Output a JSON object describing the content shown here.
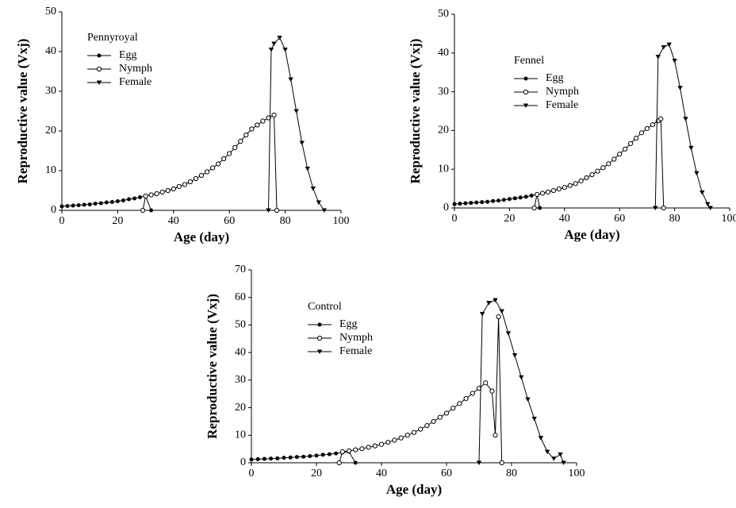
{
  "chart_data": [
    {
      "type": "line",
      "title": "Pennyroyal",
      "xlabel": "Age (day)",
      "ylabel": "Reproductive value (Vxj)",
      "xlim": [
        0,
        100
      ],
      "xticks": [
        0,
        20,
        40,
        60,
        80,
        100
      ],
      "ylim": [
        0,
        50
      ],
      "yticks": [
        0,
        10,
        20,
        30,
        40,
        50
      ],
      "series": [
        {
          "name": "Egg",
          "color": "#000000",
          "marker": "filled-circle",
          "x": [
            0,
            2,
            4,
            6,
            8,
            10,
            12,
            14,
            16,
            18,
            20,
            22,
            24,
            26,
            28,
            30,
            32
          ],
          "values": [
            1.0,
            1.1,
            1.2,
            1.3,
            1.4,
            1.5,
            1.7,
            1.8,
            2.0,
            2.1,
            2.3,
            2.5,
            2.8,
            3.0,
            3.3,
            3.6,
            0
          ]
        },
        {
          "name": "Nymph",
          "color": "#000000",
          "marker": "open-circle",
          "x": [
            29,
            30,
            32,
            34,
            36,
            38,
            40,
            42,
            44,
            46,
            48,
            50,
            52,
            54,
            56,
            58,
            60,
            62,
            64,
            66,
            68,
            70,
            72,
            74,
            76,
            77
          ],
          "values": [
            0,
            3.6,
            3.9,
            4.2,
            4.6,
            5.0,
            5.4,
            6.0,
            6.5,
            7.2,
            8.0,
            8.8,
            9.7,
            10.7,
            11.7,
            13.0,
            14.3,
            15.8,
            17.4,
            19.0,
            20.5,
            21.5,
            22.5,
            23.3,
            24.0,
            0
          ]
        },
        {
          "name": "Female",
          "color": "#000000",
          "marker": "filled-triangle-down",
          "x": [
            74,
            75,
            76,
            78,
            80,
            82,
            84,
            86,
            88,
            90,
            92,
            94
          ],
          "values": [
            0,
            40.5,
            42,
            43.5,
            40.5,
            33,
            25,
            17,
            10.5,
            5.5,
            2,
            0
          ]
        }
      ]
    },
    {
      "type": "line",
      "title": "Fennel",
      "xlabel": "Age (day)",
      "ylabel": "Reproductive value (Vxj)",
      "xlim": [
        0,
        100
      ],
      "xticks": [
        0,
        20,
        40,
        60,
        80,
        100
      ],
      "ylim": [
        0,
        50
      ],
      "yticks": [
        0,
        10,
        20,
        30,
        40,
        50
      ],
      "series": [
        {
          "name": "Egg",
          "color": "#000000",
          "marker": "filled-circle",
          "x": [
            0,
            2,
            4,
            6,
            8,
            10,
            12,
            14,
            16,
            18,
            20,
            22,
            24,
            26,
            28,
            30,
            31
          ],
          "values": [
            1.0,
            1.1,
            1.2,
            1.3,
            1.4,
            1.5,
            1.6,
            1.8,
            1.9,
            2.1,
            2.3,
            2.5,
            2.7,
            2.9,
            3.2,
            3.5,
            0
          ]
        },
        {
          "name": "Nymph",
          "color": "#000000",
          "marker": "open-circle",
          "x": [
            29,
            30,
            32,
            34,
            36,
            38,
            40,
            42,
            44,
            46,
            48,
            50,
            52,
            54,
            56,
            58,
            60,
            62,
            64,
            66,
            68,
            70,
            72,
            74,
            75,
            76
          ],
          "values": [
            0,
            3.5,
            3.8,
            4.1,
            4.5,
            4.9,
            5.3,
            5.8,
            6.3,
            7.0,
            7.8,
            8.6,
            9.5,
            10.4,
            11.4,
            12.6,
            13.9,
            15.2,
            16.6,
            18.0,
            19.4,
            20.5,
            21.5,
            22.5,
            23,
            0
          ]
        },
        {
          "name": "Female",
          "color": "#000000",
          "marker": "filled-triangle-down",
          "x": [
            73,
            74,
            76,
            78,
            80,
            82,
            84,
            86,
            88,
            90,
            92,
            93
          ],
          "values": [
            0,
            39,
            41.5,
            42.2,
            38,
            31,
            23,
            15.5,
            9,
            4,
            1,
            0
          ]
        }
      ]
    },
    {
      "type": "line",
      "title": "Control",
      "xlabel": "Age (day)",
      "ylabel": "Reproductive value (Vxj)",
      "xlim": [
        0,
        100
      ],
      "xticks": [
        0,
        20,
        40,
        60,
        80,
        100
      ],
      "ylim": [
        0,
        70
      ],
      "yticks": [
        0,
        10,
        20,
        30,
        40,
        50,
        60,
        70
      ],
      "series": [
        {
          "name": "Egg",
          "color": "#000000",
          "marker": "filled-circle",
          "x": [
            0,
            2,
            4,
            6,
            8,
            10,
            12,
            14,
            16,
            18,
            20,
            22,
            24,
            26,
            28,
            30,
            32
          ],
          "values": [
            1.2,
            1.3,
            1.4,
            1.5,
            1.6,
            1.8,
            1.9,
            2.1,
            2.2,
            2.4,
            2.6,
            2.9,
            3.1,
            3.4,
            3.7,
            4.0,
            0
          ]
        },
        {
          "name": "Nymph",
          "color": "#000000",
          "marker": "open-circle",
          "x": [
            27,
            28,
            30,
            32,
            34,
            36,
            38,
            40,
            42,
            44,
            46,
            48,
            50,
            52,
            54,
            56,
            58,
            60,
            62,
            64,
            66,
            68,
            70,
            72,
            74,
            75,
            76,
            77
          ],
          "values": [
            0,
            4,
            4.3,
            4.7,
            5.1,
            5.6,
            6.1,
            6.7,
            7.4,
            8.2,
            9.0,
            10.0,
            11.0,
            12.2,
            13.5,
            15.0,
            16.5,
            18.0,
            19.8,
            21.5,
            23.3,
            25.2,
            27,
            29,
            26,
            10,
            53,
            0
          ]
        },
        {
          "name": "Female",
          "color": "#000000",
          "marker": "filled-triangle-down",
          "x": [
            70,
            71,
            73,
            75,
            77,
            79,
            81,
            83,
            85,
            87,
            89,
            91,
            93,
            95,
            96
          ],
          "values": [
            0,
            54,
            58,
            59,
            55,
            47,
            39,
            31,
            23,
            16,
            9,
            4,
            1.5,
            3,
            0
          ]
        }
      ]
    }
  ]
}
